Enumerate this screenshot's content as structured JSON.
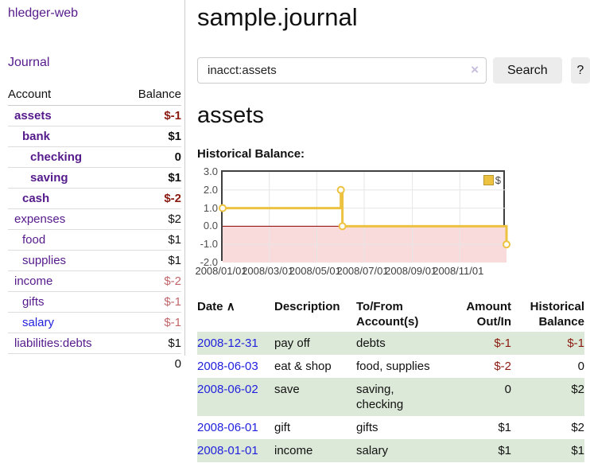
{
  "app": {
    "brand": "hledger-web",
    "nav_journal": "Journal"
  },
  "sidebar": {
    "col_account": "Account",
    "col_balance": "Balance",
    "accounts": [
      {
        "label": "assets",
        "depth": 0,
        "bold": true,
        "link": "purple",
        "balance": "$-1",
        "balance_style": "neg-strong"
      },
      {
        "label": "bank",
        "depth": 1,
        "bold": true,
        "link": "purple",
        "balance": "$1",
        "balance_style": ""
      },
      {
        "label": "checking",
        "depth": 2,
        "bold": true,
        "link": "purple",
        "balance": "0",
        "balance_style": ""
      },
      {
        "label": "saving",
        "depth": 2,
        "bold": true,
        "link": "purple",
        "balance": "$1",
        "balance_style": ""
      },
      {
        "label": "cash",
        "depth": 1,
        "bold": true,
        "link": "purple",
        "balance": "$-2",
        "balance_style": "neg-strong"
      },
      {
        "label": "expenses",
        "depth": 0,
        "bold": false,
        "link": "purple",
        "balance": "$2",
        "balance_style": ""
      },
      {
        "label": "food",
        "depth": 1,
        "bold": false,
        "link": "purple",
        "balance": "$1",
        "balance_style": ""
      },
      {
        "label": "supplies",
        "depth": 1,
        "bold": false,
        "link": "purple",
        "balance": "$1",
        "balance_style": ""
      },
      {
        "label": "income",
        "depth": 0,
        "bold": false,
        "link": "purple",
        "balance": "$-2",
        "balance_style": "neg-muted"
      },
      {
        "label": "gifts",
        "depth": 1,
        "bold": false,
        "link": "purple",
        "balance": "$-1",
        "balance_style": "neg-muted"
      },
      {
        "label": "salary",
        "depth": 1,
        "bold": false,
        "link": "blue",
        "balance": "$-1",
        "balance_style": "neg-muted"
      },
      {
        "label": "liabilities:debts",
        "depth": 0,
        "bold": false,
        "link": "purple",
        "balance": "$1",
        "balance_style": ""
      }
    ],
    "total": "0"
  },
  "header": {
    "title": "sample.journal"
  },
  "search": {
    "value": "inacct:assets",
    "clear_icon": "×",
    "button_label": "Search",
    "help_label": "?"
  },
  "account_page": {
    "heading": "assets",
    "chart_label": "Historical Balance:"
  },
  "chart_data": {
    "type": "line",
    "step": true,
    "title": "Historical Balance",
    "xlabel": "",
    "ylabel": "",
    "ylim": [
      -2.0,
      3.0
    ],
    "xlim_days": [
      0,
      365
    ],
    "grid": true,
    "legend_position": "top-right",
    "y_ticks": [
      "3.0",
      "2.0",
      "1.0",
      "0.0",
      "-1.0",
      "-2.0"
    ],
    "y_tick_values": [
      3,
      2,
      1,
      0,
      -1,
      -2
    ],
    "x_ticks": [
      {
        "day": 0,
        "label": "2008/01/01"
      },
      {
        "day": 60,
        "label": "2008/03/01"
      },
      {
        "day": 121,
        "label": "2008/05/01"
      },
      {
        "day": 182,
        "label": "2008/07/01"
      },
      {
        "day": 244,
        "label": "2008/09/01"
      },
      {
        "day": 305,
        "label": "2008/11/01"
      }
    ],
    "series": [
      {
        "name": "$",
        "color": "#edc240",
        "points": [
          {
            "x": "2008-01-01",
            "day": 0,
            "value": 1
          },
          {
            "x": "2008-06-01",
            "day": 152,
            "value": 2
          },
          {
            "x": "2008-06-03",
            "day": 154,
            "value": 0
          },
          {
            "x": "2008-12-31",
            "day": 365,
            "value": -1
          }
        ]
      }
    ],
    "negative_region_fill": "#fadbdb",
    "zero_line_color": "#8b0000",
    "gridline_color": "#e6e6e6",
    "border_color": "#404040"
  },
  "register": {
    "headers": {
      "date": "Date",
      "sort_icon": "∧",
      "description": "Description",
      "accounts_line1": "To/From",
      "accounts_line2": "Account(s)",
      "amount_line1": "Amount",
      "amount_line2": "Out/In",
      "balance_line1": "Historical",
      "balance_line2": "Balance"
    },
    "rows": [
      {
        "date": "2008-12-31",
        "description": "pay off",
        "accounts": "debts",
        "amount": "$-1",
        "amount_neg": true,
        "balance": "$-1",
        "balance_neg": true
      },
      {
        "date": "2008-06-03",
        "description": "eat & shop",
        "accounts": "food, supplies",
        "amount": "$-2",
        "amount_neg": true,
        "balance": "0",
        "balance_neg": false
      },
      {
        "date": "2008-06-02",
        "description": "save",
        "accounts": "saving, checking",
        "amount": "0",
        "amount_neg": false,
        "balance": "$2",
        "balance_neg": false
      },
      {
        "date": "2008-06-01",
        "description": "gift",
        "accounts": "gifts",
        "amount": "$1",
        "amount_neg": false,
        "balance": "$2",
        "balance_neg": false
      },
      {
        "date": "2008-01-01",
        "description": "income",
        "accounts": "salary",
        "amount": "$1",
        "amount_neg": false,
        "balance": "$1",
        "balance_neg": false
      }
    ]
  },
  "colors": {
    "link_purple": "#551a8b",
    "link_blue": "#2222dd",
    "negative_strong": "#8b1a10",
    "negative_muted": "#c0666b",
    "row_alt_green": "#dde9d8",
    "series_gold": "#edc240"
  }
}
